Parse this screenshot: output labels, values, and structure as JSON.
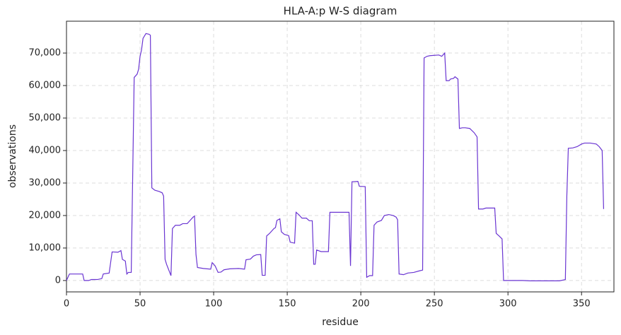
{
  "chart_data": {
    "type": "line",
    "title": "HLA-A:p W-S diagram",
    "xlabel": "residue",
    "ylabel": "observations",
    "x": [
      0,
      2,
      11,
      12,
      15,
      17,
      21,
      24,
      25,
      29,
      31,
      35,
      37,
      38,
      40,
      41,
      42,
      44,
      46,
      48,
      49,
      50,
      51,
      52,
      54,
      56,
      57,
      58,
      60,
      63,
      65,
      66,
      67,
      68,
      71,
      72,
      74,
      77,
      79,
      82,
      84,
      86,
      87,
      88,
      89,
      93,
      98,
      99,
      101,
      103,
      105,
      107,
      111,
      117,
      121,
      122,
      125,
      127,
      129,
      132,
      133,
      135,
      136,
      138,
      141,
      142,
      143,
      145,
      146,
      148,
      151,
      152,
      155,
      156,
      158,
      160,
      163,
      165,
      167,
      168,
      169,
      170,
      173,
      178,
      179,
      182,
      189,
      192,
      193,
      194,
      198,
      199,
      203,
      204,
      206,
      208,
      209,
      211,
      214,
      216,
      219,
      222,
      224,
      225,
      226,
      229,
      232,
      236,
      240,
      242,
      243,
      245,
      247,
      253,
      255,
      257,
      258,
      260,
      261,
      263,
      264,
      266,
      267,
      269,
      271,
      274,
      277,
      279,
      280,
      283,
      285,
      291,
      292,
      294,
      296,
      297,
      300,
      310,
      315,
      335,
      339,
      340,
      341,
      344,
      347,
      350,
      352,
      356,
      360,
      362,
      364,
      365
    ],
    "series": [
      {
        "name": "observations",
        "color": "#6a35d2",
        "values": [
          0,
          2000,
          2000,
          0,
          0,
          300,
          300,
          600,
          2000,
          2300,
          8800,
          8700,
          9200,
          6500,
          6000,
          2000,
          2500,
          2500,
          62500,
          63500,
          65000,
          69000,
          71000,
          74500,
          76000,
          75800,
          75500,
          28500,
          27800,
          27400,
          27000,
          26000,
          6500,
          5000,
          1500,
          16000,
          17000,
          17000,
          17500,
          17500,
          18500,
          19500,
          19800,
          8000,
          4000,
          3700,
          3500,
          5500,
          4500,
          2500,
          2600,
          3300,
          3600,
          3700,
          3500,
          6400,
          6600,
          7500,
          7900,
          8000,
          1600,
          1600,
          13700,
          14500,
          16000,
          16300,
          18500,
          19000,
          15000,
          14200,
          13800,
          11800,
          11500,
          21000,
          20200,
          19200,
          19200,
          18400,
          18400,
          5000,
          5000,
          9400,
          8900,
          8900,
          21000,
          21000,
          21000,
          21000,
          4500,
          30400,
          30500,
          29000,
          28900,
          1000,
          1500,
          1500,
          17000,
          18000,
          18500,
          20000,
          20300,
          20000,
          19500,
          18700,
          2000,
          1800,
          2300,
          2500,
          3000,
          3200,
          68500,
          69000,
          69200,
          69400,
          69000,
          70000,
          61500,
          61500,
          62000,
          62200,
          62700,
          62000,
          46800,
          47000,
          47000,
          46800,
          45500,
          44200,
          22000,
          22000,
          22300,
          22300,
          14500,
          13700,
          12800,
          0,
          0,
          0,
          -100,
          -100,
          300,
          26000,
          40700,
          40800,
          41200,
          42000,
          42300,
          42300,
          42000,
          41200,
          40000,
          22000
        ]
      }
    ],
    "xlim": [
      0,
      372
    ],
    "ylim": [
      -3500,
      79800
    ],
    "xticks": [
      0,
      50,
      100,
      150,
      200,
      250,
      300,
      350
    ],
    "yticks": [
      0,
      {
        "value": 10000,
        "label": "10,000"
      },
      {
        "value": 20000,
        "label": "20,000"
      },
      {
        "value": 30000,
        "label": "30,000"
      },
      {
        "value": 40000,
        "label": "40,000"
      },
      {
        "value": 50000,
        "label": "50,000"
      },
      {
        "value": 60000,
        "label": "60,000"
      },
      {
        "value": 70000,
        "label": "70,000"
      }
    ],
    "grid": true
  }
}
